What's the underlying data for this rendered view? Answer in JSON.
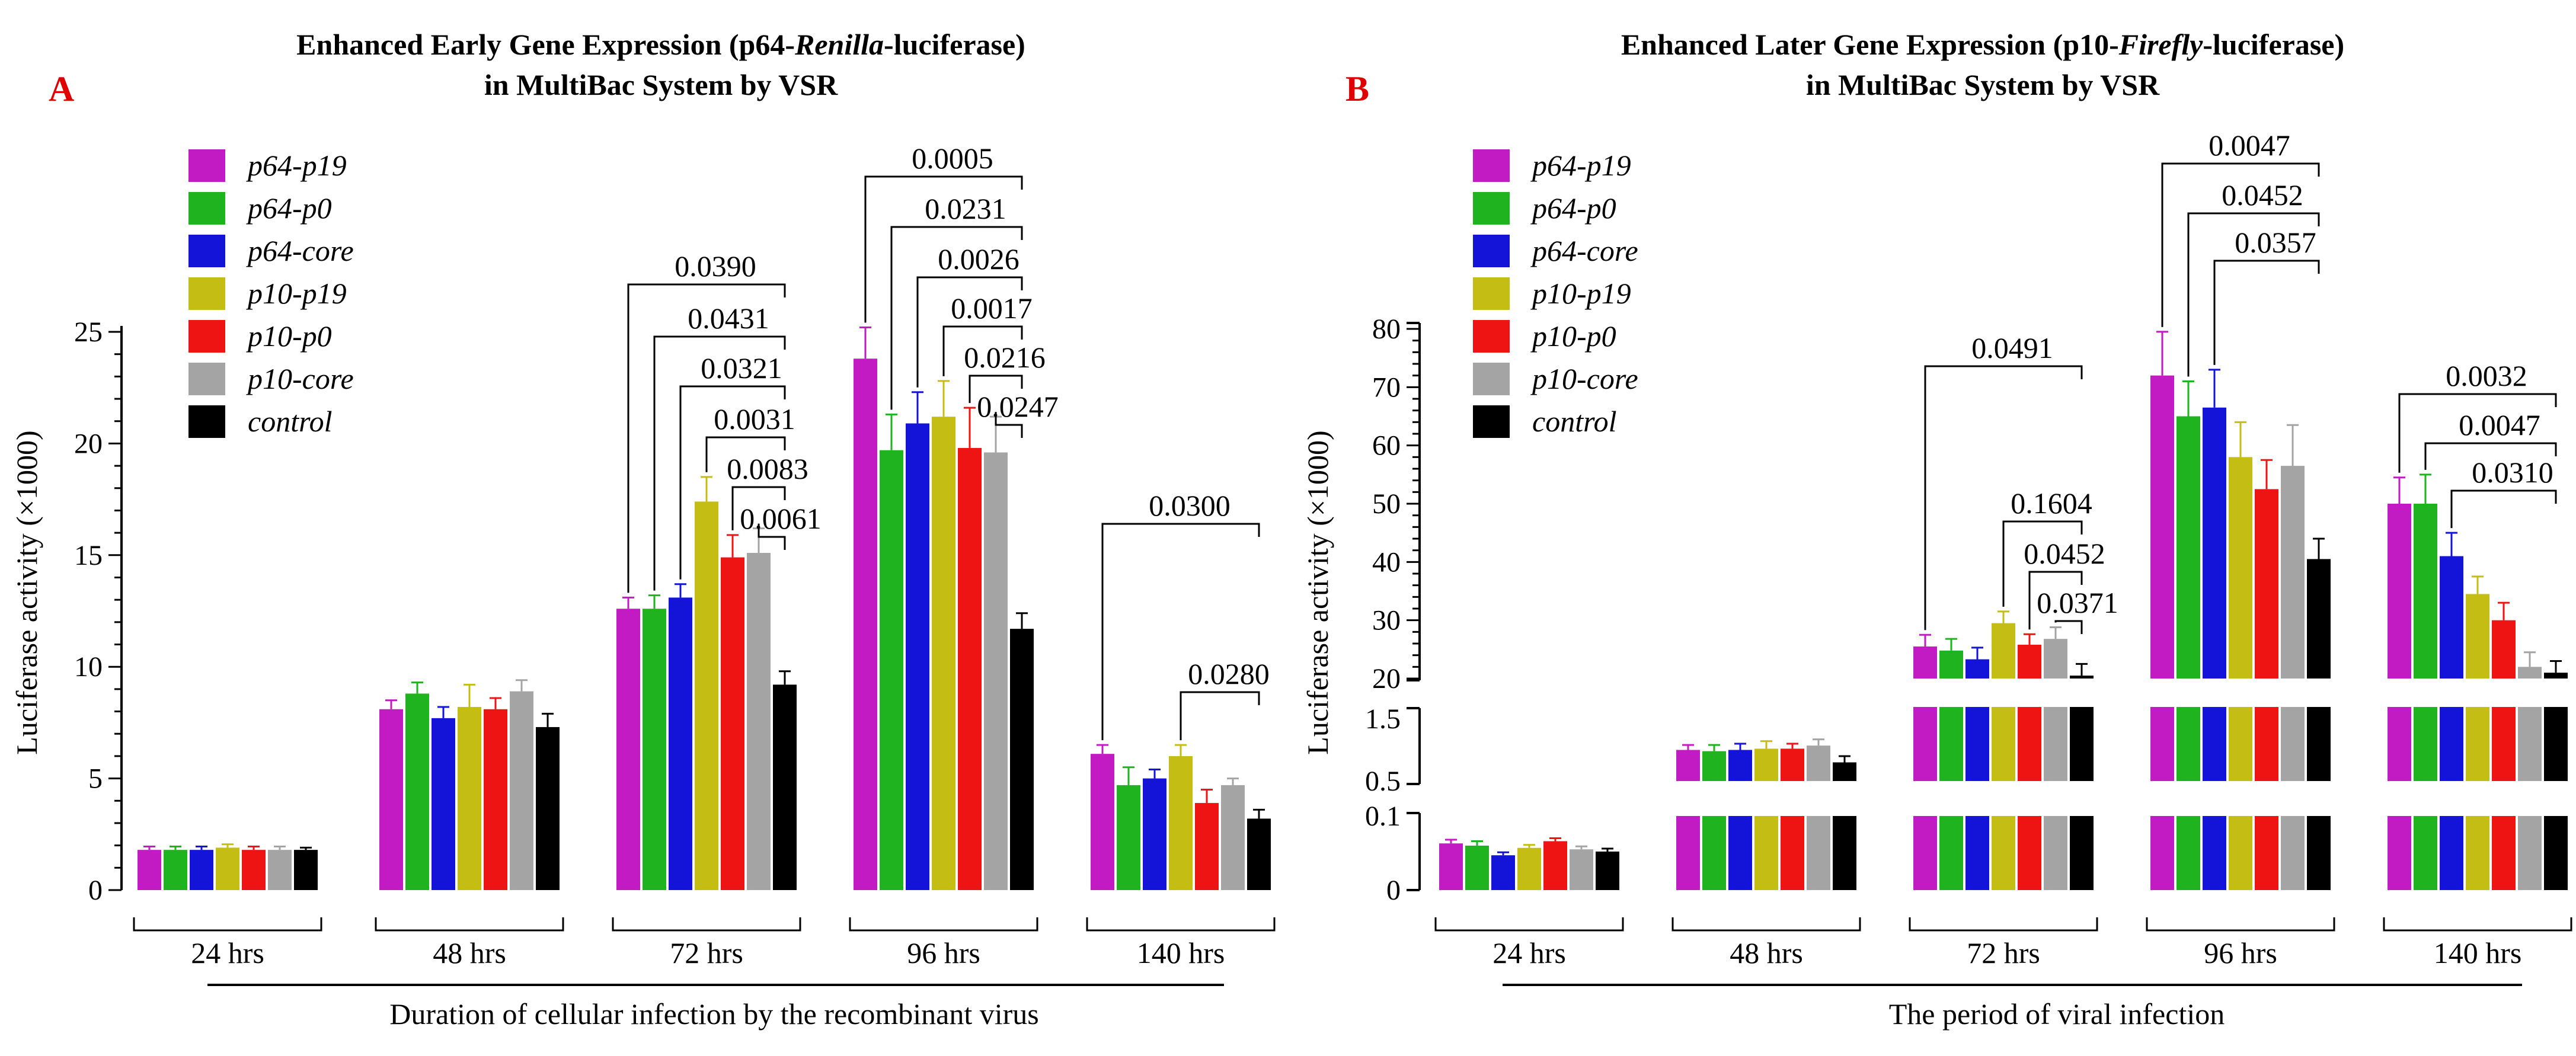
{
  "colors": {
    "p64-p19": "#c21bc3",
    "p64-p0": "#1fb41f",
    "p64-core": "#1414d9",
    "p10-p19": "#c4be14",
    "p10-p0": "#ee1414",
    "p10-core": "#a4a4a4",
    "control": "#000000",
    "panel_letter": "#e00000"
  },
  "panels": [
    {
      "letter": "A",
      "title_parts": [
        "Enhanced Early Gene Expression (p64-",
        "Renilla",
        "-luciferase)"
      ],
      "title_line2": "in MultiBac System by VSR",
      "ylabel": "Luciferase activity (×1000)",
      "xlabel": "Duration of cellular infection by the recombinant virus",
      "yticks": [
        "0",
        "5",
        "10",
        "15",
        "20",
        "25"
      ],
      "legend": [
        "p64-p19",
        "p64-p0",
        "p64-core",
        "p10-p19",
        "p10-p0",
        "p10-core",
        "control"
      ],
      "groups": [
        "24 hrs",
        "48 hrs",
        "72 hrs",
        "96 hrs",
        "140 hrs"
      ],
      "pvalues": [
        [
          "0.0390",
          "0.0431",
          "0.0321",
          "0.0031",
          "0.0083",
          "0.0061"
        ],
        [
          "0.0005",
          "0.0231",
          "0.0026",
          "0.0017",
          "0.0216",
          "0.0247"
        ],
        [
          "0.0300",
          "0.0280"
        ]
      ]
    },
    {
      "letter": "B",
      "title_parts": [
        "Enhanced Later Gene Expression (p10-",
        "Firefly",
        "-luciferase)"
      ],
      "title_line2": "in MultiBac System by VSR",
      "ylabel": "Luciferase activity (×1000)",
      "xlabel": "The period of viral infection",
      "yticks_upper": [
        "20",
        "30",
        "40",
        "50",
        "60",
        "70",
        "80"
      ],
      "yticks_middle": [
        "0.5",
        "1.5"
      ],
      "yticks_lower": [
        "0",
        "0.1"
      ],
      "legend": [
        "p64-p19",
        "p64-p0",
        "p64-core",
        "p10-p19",
        "p10-p0",
        "p10-core",
        "control"
      ],
      "groups": [
        "24 hrs",
        "48 hrs",
        "72 hrs",
        "96 hrs",
        "140 hrs"
      ],
      "pvalues": [
        [
          "0.0491",
          "0.1604",
          "0.0452",
          "0.0371"
        ],
        [
          "0.0047",
          "0.0452",
          "0.0357"
        ],
        [
          "0.0032",
          "0.0047",
          "0.0310"
        ]
      ]
    }
  ],
  "chart_data": [
    {
      "type": "bar",
      "title": "Enhanced Early Gene Expression (p64-Renilla-luciferase) in MultiBac System by VSR",
      "ylabel": "Luciferase activity (×1000)",
      "xlabel": "Duration of cellular infection by the recombinant virus",
      "categories": [
        "24 hrs",
        "48 hrs",
        "72 hrs",
        "96 hrs",
        "140 hrs"
      ],
      "ylim": [
        0,
        25
      ],
      "legend_position": "top-left",
      "series": [
        {
          "name": "p64-p19",
          "values": [
            1.8,
            8.1,
            12.6,
            23.8,
            6.1
          ],
          "errors": [
            0.15,
            0.4,
            0.5,
            1.4,
            0.4
          ]
        },
        {
          "name": "p64-p0",
          "values": [
            1.8,
            8.8,
            12.6,
            19.7,
            4.7
          ],
          "errors": [
            0.15,
            0.5,
            0.6,
            1.6,
            0.8
          ]
        },
        {
          "name": "p64-core",
          "values": [
            1.8,
            7.7,
            13.1,
            20.9,
            5.0
          ],
          "errors": [
            0.15,
            0.5,
            0.6,
            1.4,
            0.4
          ]
        },
        {
          "name": "p10-p19",
          "values": [
            1.9,
            8.2,
            17.4,
            21.2,
            6.0
          ],
          "errors": [
            0.15,
            1.0,
            1.1,
            1.6,
            0.5
          ]
        },
        {
          "name": "p10-p0",
          "values": [
            1.8,
            8.1,
            14.9,
            19.8,
            3.9
          ],
          "errors": [
            0.15,
            0.5,
            1.0,
            1.8,
            0.6
          ]
        },
        {
          "name": "p10-core",
          "values": [
            1.8,
            8.9,
            15.1,
            19.6,
            4.7
          ],
          "errors": [
            0.15,
            0.5,
            1.1,
            1.6,
            0.3
          ]
        },
        {
          "name": "control",
          "values": [
            1.8,
            7.3,
            9.2,
            11.7,
            3.2
          ],
          "errors": [
            0.1,
            0.6,
            0.6,
            0.7,
            0.4
          ]
        }
      ],
      "significance": [
        {
          "group": "72 hrs",
          "from": "p64-p19",
          "to": "control",
          "p": "0.0390"
        },
        {
          "group": "72 hrs",
          "from": "p64-p0",
          "to": "control",
          "p": "0.0431"
        },
        {
          "group": "72 hrs",
          "from": "p64-core",
          "to": "control",
          "p": "0.0321"
        },
        {
          "group": "72 hrs",
          "from": "p10-p19",
          "to": "control",
          "p": "0.0031"
        },
        {
          "group": "72 hrs",
          "from": "p10-p0",
          "to": "control",
          "p": "0.0083"
        },
        {
          "group": "72 hrs",
          "from": "p10-core",
          "to": "control",
          "p": "0.0061"
        },
        {
          "group": "96 hrs",
          "from": "p64-p19",
          "to": "control",
          "p": "0.0005"
        },
        {
          "group": "96 hrs",
          "from": "p64-p0",
          "to": "control",
          "p": "0.0231"
        },
        {
          "group": "96 hrs",
          "from": "p64-core",
          "to": "control",
          "p": "0.0026"
        },
        {
          "group": "96 hrs",
          "from": "p10-p19",
          "to": "control",
          "p": "0.0017"
        },
        {
          "group": "96 hrs",
          "from": "p10-p0",
          "to": "control",
          "p": "0.0216"
        },
        {
          "group": "96 hrs",
          "from": "p10-core",
          "to": "control",
          "p": "0.0247"
        },
        {
          "group": "140 hrs",
          "from": "p64-p19",
          "to": "control",
          "p": "0.0300"
        },
        {
          "group": "140 hrs",
          "from": "p10-p19",
          "to": "control",
          "p": "0.0280"
        }
      ]
    },
    {
      "type": "bar",
      "title": "Enhanced Later Gene Expression (p10-Firefly-luciferase) in MultiBac System by VSR",
      "ylabel": "Luciferase activity (×1000)",
      "xlabel": "The period of viral infection",
      "categories": [
        "24 hrs",
        "48 hrs",
        "72 hrs",
        "96 hrs",
        "140 hrs"
      ],
      "y_axis_segments": [
        [
          0,
          0.1
        ],
        [
          0.5,
          1.5
        ],
        [
          20,
          80
        ]
      ],
      "legend_position": "top-left",
      "series": [
        {
          "name": "p64-p19",
          "values": [
            0.063,
            1.0,
            25.5,
            72.0,
            50.0
          ],
          "errors": [
            0.005,
            0.08,
            2.0,
            7.5,
            4.5
          ]
        },
        {
          "name": "p64-p0",
          "values": [
            0.06,
            0.98,
            24.8,
            65.0,
            50.0
          ],
          "errors": [
            0.006,
            0.1,
            2.0,
            6.0,
            5.0
          ]
        },
        {
          "name": "p64-core",
          "values": [
            0.047,
            1.0,
            23.3,
            66.5,
            41.0
          ],
          "errors": [
            0.004,
            0.1,
            2.0,
            6.5,
            4.0
          ]
        },
        {
          "name": "p10-p19",
          "values": [
            0.057,
            1.02,
            29.5,
            58.0,
            34.5
          ],
          "errors": [
            0.004,
            0.12,
            2.0,
            6.0,
            3.0
          ]
        },
        {
          "name": "p10-p0",
          "values": [
            0.066,
            1.02,
            25.8,
            52.5,
            30.0
          ],
          "errors": [
            0.004,
            0.08,
            1.8,
            5.0,
            3.0
          ]
        },
        {
          "name": "p10-core",
          "values": [
            0.055,
            1.07,
            26.8,
            56.5,
            22.0
          ],
          "errors": [
            0.004,
            0.1,
            2.0,
            7.0,
            2.5
          ]
        },
        {
          "name": "control",
          "values": [
            0.052,
            0.8,
            20.5,
            40.5,
            21.0
          ],
          "errors": [
            0.004,
            0.1,
            2.0,
            3.5,
            2.0
          ]
        }
      ],
      "significance": [
        {
          "group": "72 hrs",
          "from": "p64-p19",
          "to": "control",
          "p": "0.0491"
        },
        {
          "group": "72 hrs",
          "from": "p10-p19",
          "to": "control",
          "p": "0.1604"
        },
        {
          "group": "72 hrs",
          "from": "p10-p0",
          "to": "control",
          "p": "0.0452"
        },
        {
          "group": "72 hrs",
          "from": "p10-core",
          "to": "control",
          "p": "0.0371"
        },
        {
          "group": "96 hrs",
          "from": "p64-p19",
          "to": "control",
          "p": "0.0047"
        },
        {
          "group": "96 hrs",
          "from": "p64-p0",
          "to": "control",
          "p": "0.0452"
        },
        {
          "group": "96 hrs",
          "from": "p64-core",
          "to": "control",
          "p": "0.0357"
        },
        {
          "group": "140 hrs",
          "from": "p64-p19",
          "to": "control",
          "p": "0.0032"
        },
        {
          "group": "140 hrs",
          "from": "p64-p0",
          "to": "control",
          "p": "0.0047"
        },
        {
          "group": "140 hrs",
          "from": "p64-core",
          "to": "control",
          "p": "0.0310"
        }
      ]
    }
  ]
}
